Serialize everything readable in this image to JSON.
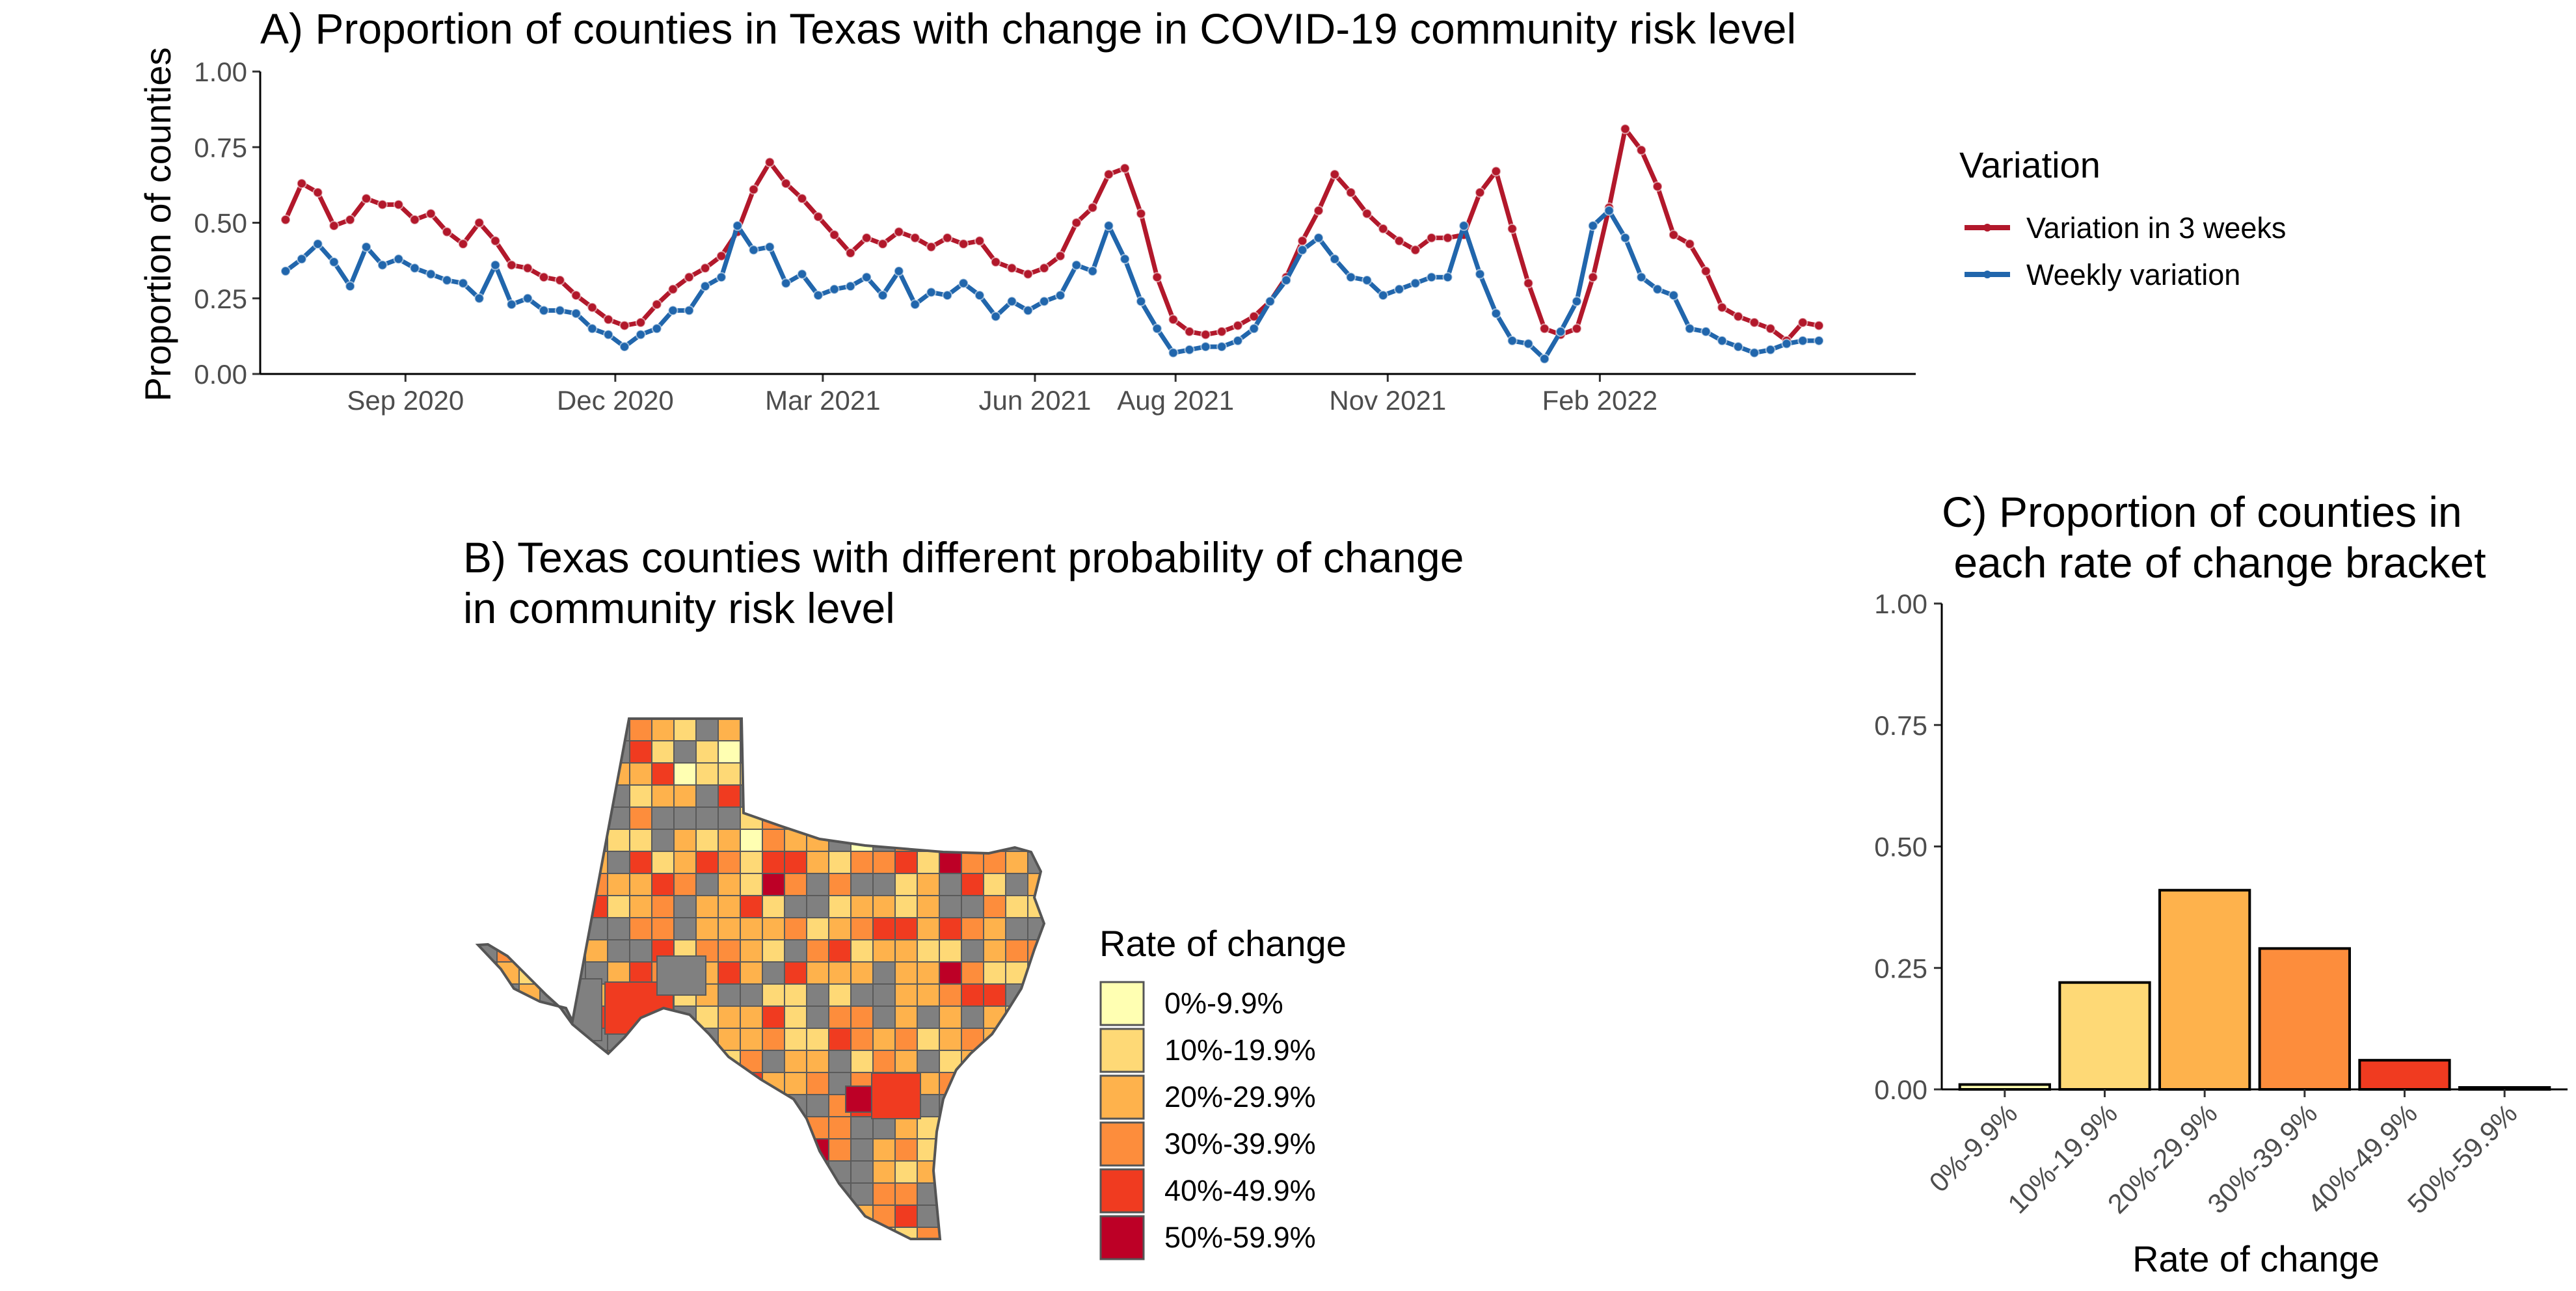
{
  "colors": {
    "three_week": "#b2182b",
    "weekly": "#2166ac",
    "bracket_0": "#ffffb2",
    "bracket_10": "#fed976",
    "bracket_20": "#feb24c",
    "bracket_30": "#fd8d3c",
    "bracket_40": "#f03b20",
    "bracket_50": "#bd0026",
    "no_data": "#808080"
  },
  "chart_data": [
    {
      "type": "line",
      "title": "A) Proportion of counties in Texas with change in COVID-19 community risk level",
      "xlabel": "",
      "ylabel": "Proportion of counties",
      "x_start": "2020-07-11",
      "x_step_days": 7,
      "xlim": [
        "2020-06-30",
        "2022-06-18"
      ],
      "ylim": [
        0,
        1
      ],
      "x_ticks": [
        "Sep 2020",
        "Dec 2020",
        "Mar 2021",
        "Jun 2021",
        "Aug 2021",
        "Nov 2021",
        "Feb 2022"
      ],
      "x_tick_dates": [
        "2020-09-01",
        "2020-12-01",
        "2021-03-01",
        "2021-06-01",
        "2021-08-01",
        "2021-11-01",
        "2022-02-01"
      ],
      "y_ticks": [
        "0.00",
        "0.25",
        "0.50",
        "0.75",
        "1.00"
      ],
      "legend": {
        "title": "Variation",
        "placement": "right"
      },
      "series": [
        {
          "name": "Variation in 3 weeks",
          "values": [
            0.51,
            0.63,
            0.6,
            0.49,
            0.51,
            0.58,
            0.56,
            0.56,
            0.51,
            0.53,
            0.47,
            0.43,
            0.5,
            0.44,
            0.36,
            0.35,
            0.32,
            0.31,
            0.26,
            0.22,
            0.18,
            0.16,
            0.17,
            0.23,
            0.28,
            0.32,
            0.35,
            0.39,
            0.47,
            0.61,
            0.7,
            0.63,
            0.58,
            0.52,
            0.46,
            0.4,
            0.45,
            0.43,
            0.47,
            0.45,
            0.42,
            0.45,
            0.43,
            0.44,
            0.37,
            0.35,
            0.33,
            0.35,
            0.39,
            0.5,
            0.55,
            0.66,
            0.68,
            0.53,
            0.32,
            0.18,
            0.14,
            0.13,
            0.14,
            0.16,
            0.19,
            0.24,
            0.32,
            0.44,
            0.54,
            0.66,
            0.6,
            0.53,
            0.48,
            0.44,
            0.41,
            0.45,
            0.45,
            0.46,
            0.6,
            0.67,
            0.48,
            0.3,
            0.15,
            0.13,
            0.15,
            0.32,
            0.55,
            0.81,
            0.74,
            0.62,
            0.46,
            0.43,
            0.34,
            0.22,
            0.19,
            0.17,
            0.15,
            0.11,
            0.17,
            0.16
          ]
        },
        {
          "name": "Weekly variation",
          "values": [
            0.34,
            0.38,
            0.43,
            0.37,
            0.29,
            0.42,
            0.36,
            0.38,
            0.35,
            0.33,
            0.31,
            0.3,
            0.25,
            0.36,
            0.23,
            0.25,
            0.21,
            0.21,
            0.2,
            0.15,
            0.13,
            0.09,
            0.13,
            0.15,
            0.21,
            0.21,
            0.29,
            0.32,
            0.49,
            0.41,
            0.42,
            0.3,
            0.33,
            0.26,
            0.28,
            0.29,
            0.32,
            0.26,
            0.34,
            0.23,
            0.27,
            0.26,
            0.3,
            0.26,
            0.19,
            0.24,
            0.21,
            0.24,
            0.26,
            0.36,
            0.34,
            0.49,
            0.38,
            0.24,
            0.15,
            0.07,
            0.08,
            0.09,
            0.09,
            0.11,
            0.15,
            0.24,
            0.31,
            0.41,
            0.45,
            0.38,
            0.32,
            0.31,
            0.26,
            0.28,
            0.3,
            0.32,
            0.32,
            0.49,
            0.33,
            0.2,
            0.11,
            0.1,
            0.05,
            0.14,
            0.24,
            0.49,
            0.54,
            0.45,
            0.32,
            0.28,
            0.26,
            0.15,
            0.14,
            0.11,
            0.09,
            0.07,
            0.08,
            0.1,
            0.11,
            0.11
          ]
        }
      ]
    },
    {
      "type": "map",
      "title": "B)  Texas counties with different probability of change\nin community risk level",
      "legend": {
        "title": "Rate of change",
        "placement": "right",
        "entries": [
          "0%-9.9%",
          "10%-19.9%",
          "20%-29.9%",
          "30%-39.9%",
          "40%-49.9%",
          "50%-59.9%"
        ]
      }
    },
    {
      "type": "bar",
      "title": "C) Proportion of counties in\n each rate of change bracket",
      "xlabel": "Rate of change",
      "ylabel": "",
      "categories": [
        "0%-9.9%",
        "10%-19.9%",
        "20%-29.9%",
        "30%-39.9%",
        "40%-49.9%",
        "50%-59.9%"
      ],
      "values": [
        0.01,
        0.22,
        0.41,
        0.29,
        0.06,
        0.004
      ],
      "ylim": [
        0,
        1
      ],
      "y_ticks": [
        "0.00",
        "0.25",
        "0.50",
        "0.75",
        "1.00"
      ]
    }
  ]
}
